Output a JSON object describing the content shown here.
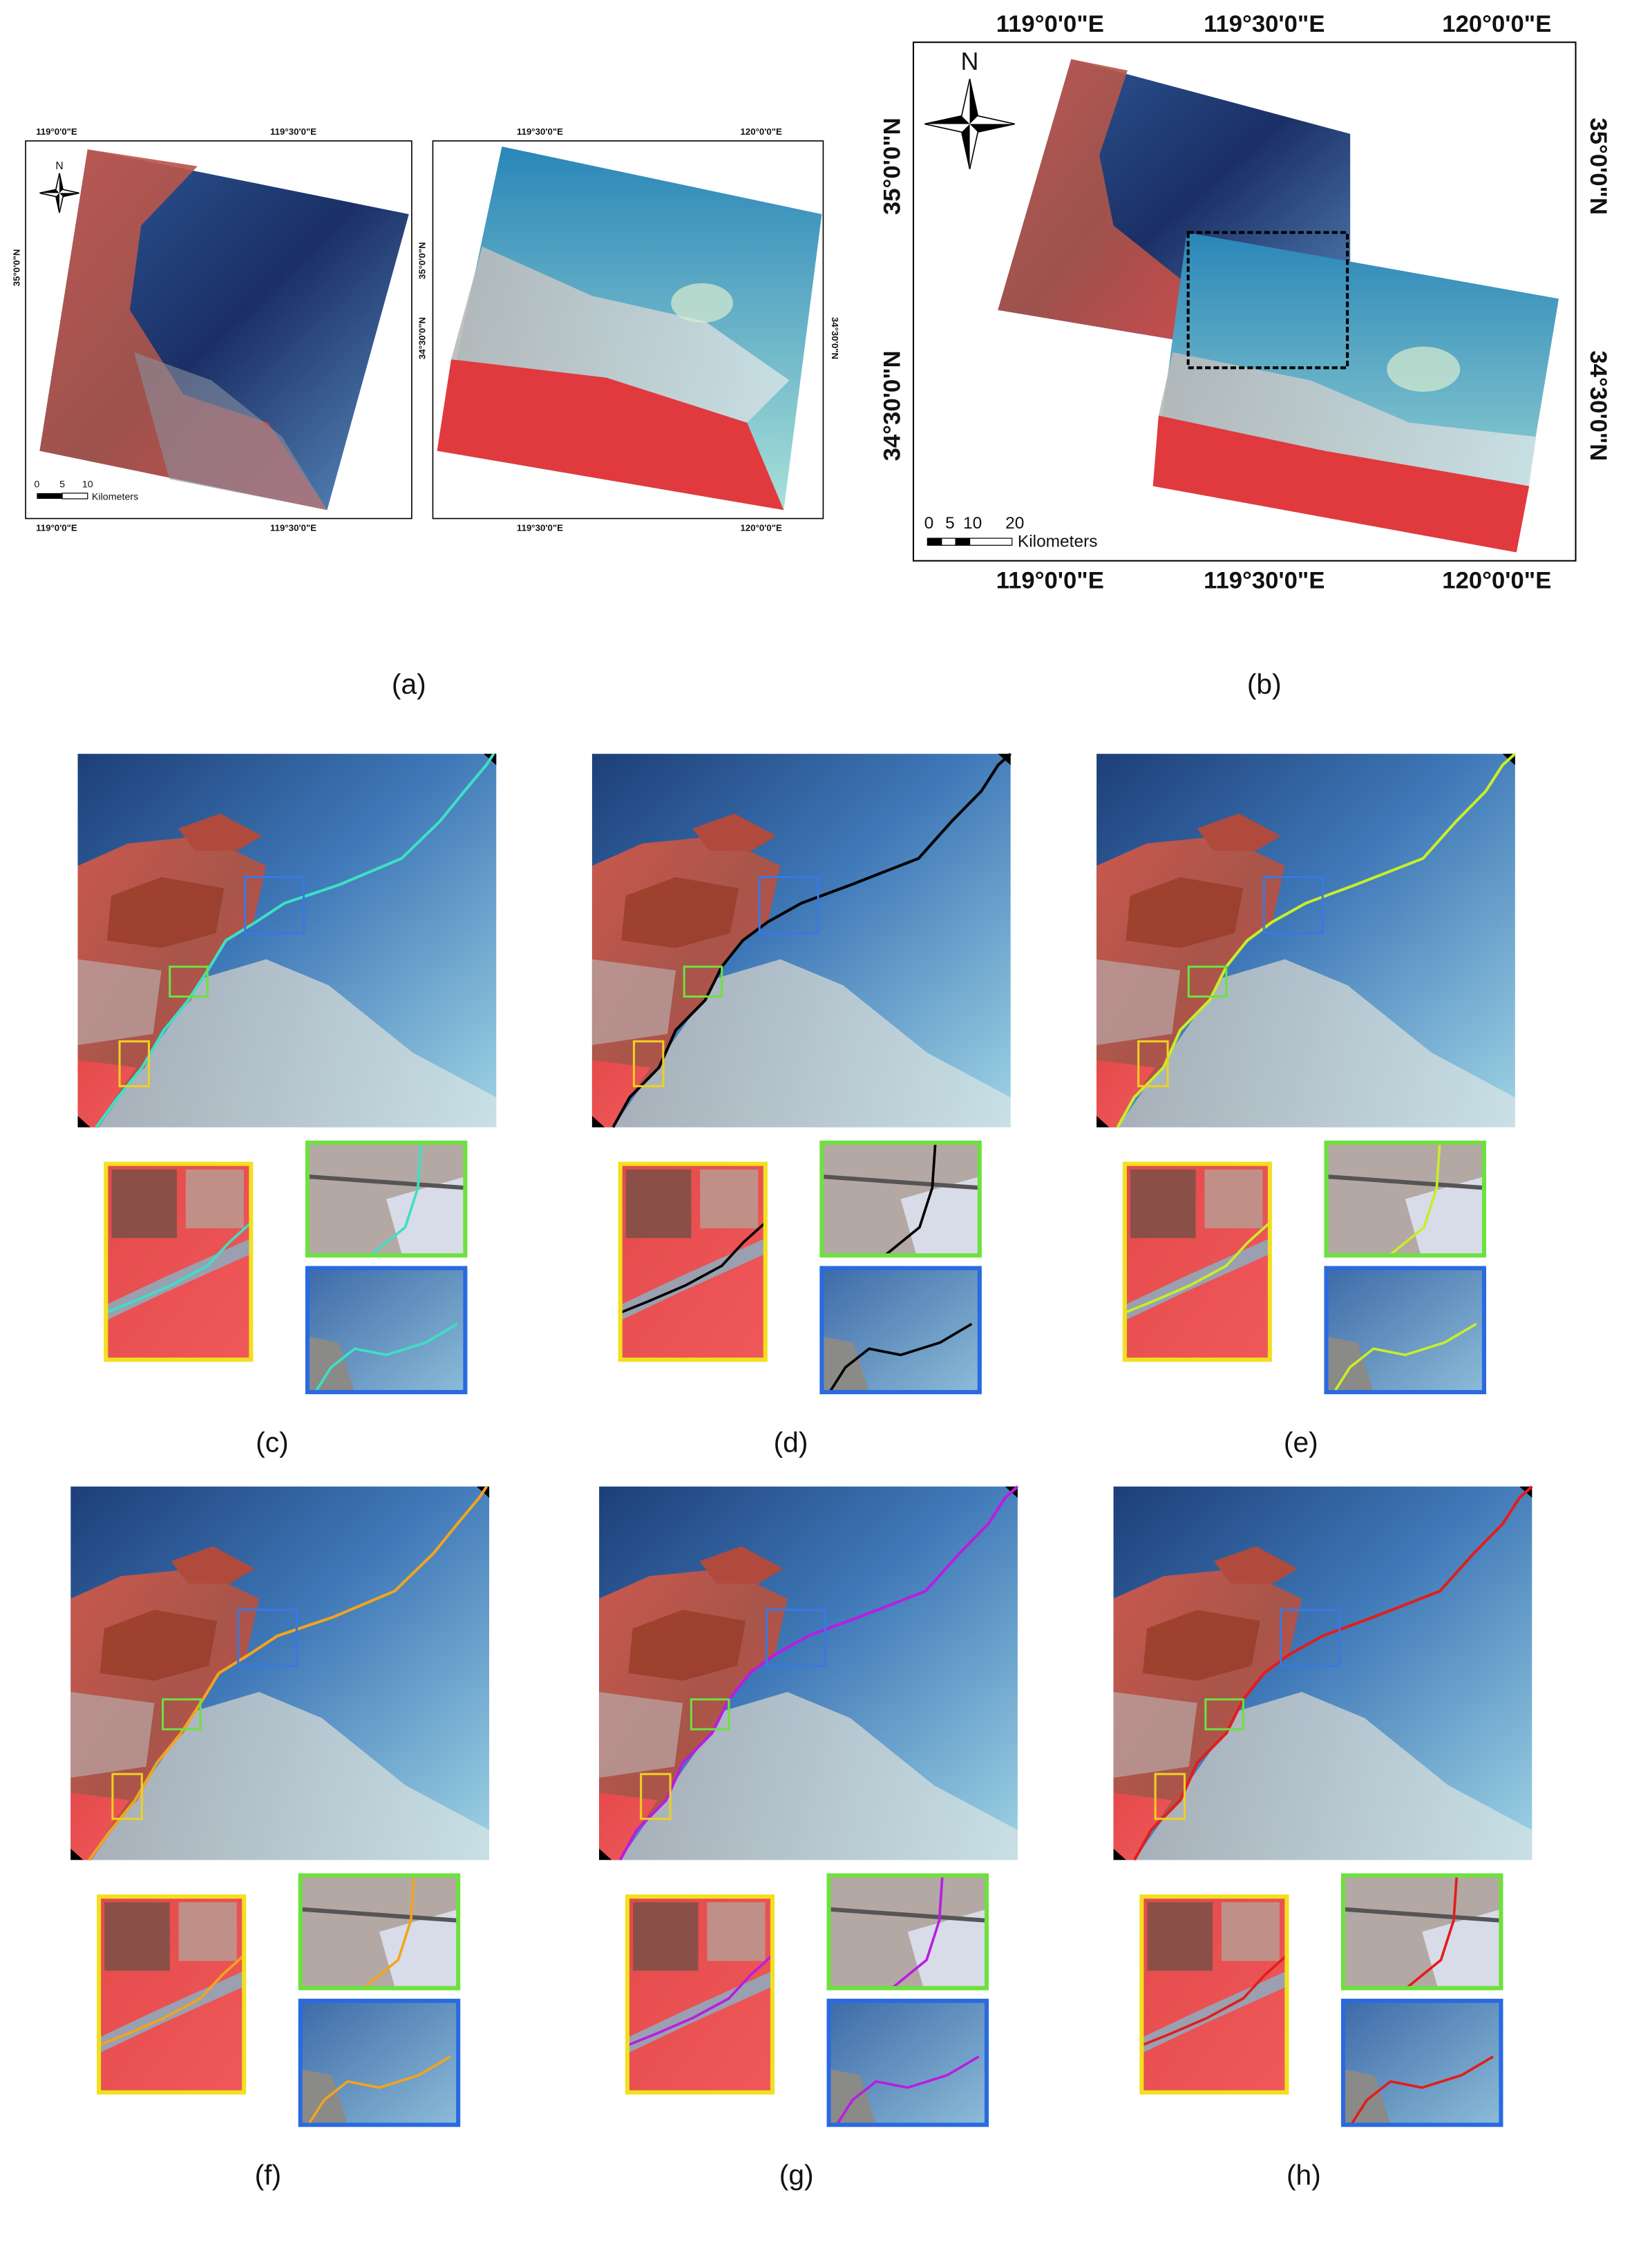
{
  "panel_a": {
    "label": "(a)",
    "left_map": {
      "top": [
        "119°0'0\"E",
        "119°30'0\"E"
      ],
      "bottom": [
        "119°0'0\"E",
        "119°30'0\"E"
      ],
      "left": [
        "35°0'0\"N"
      ],
      "north": "N",
      "scale_ticks": [
        "0",
        "5",
        "10"
      ],
      "scale_unit": "Kilometers"
    },
    "right_map": {
      "top": [
        "119°30'0\"E",
        "120°0'0\"E"
      ],
      "bottom": [
        "119°30'0\"E",
        "120°0'0\"E"
      ],
      "left": [
        "35°0'0\"N",
        "34°30'0\"N"
      ],
      "right": [
        "34°30'0\"N"
      ]
    }
  },
  "panel_b": {
    "label": "(b)",
    "top": [
      "119°0'0\"E",
      "119°30'0\"E",
      "120°0'0\"E"
    ],
    "bottom": [
      "119°0'0\"E",
      "119°30'0\"E",
      "120°0'0\"E"
    ],
    "left": [
      "35°0'0\"N",
      "34°30'0\"N"
    ],
    "right": [
      "35°0'0\"N",
      "34°30'0\"N"
    ],
    "north": "N",
    "scale_ticks": [
      "0",
      "5",
      "10",
      "20"
    ],
    "scale_unit": "Kilometers"
  },
  "panels": [
    {
      "label": "(c)",
      "line_color": "#3de0c4"
    },
    {
      "label": "(d)",
      "line_color": "#000000"
    },
    {
      "label": "(e)",
      "line_color": "#c6ee2a"
    },
    {
      "label": "(f)",
      "line_color": "#f2a41e"
    },
    {
      "label": "(g)",
      "line_color": "#b81ee0"
    },
    {
      "label": "(h)",
      "line_color": "#e01e1e"
    }
  ]
}
